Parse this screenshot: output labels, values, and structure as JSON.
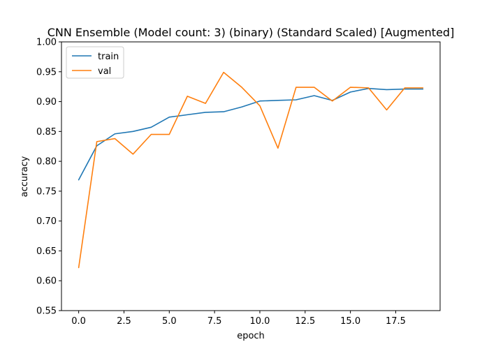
{
  "chart_data": {
    "type": "line",
    "title": "CNN Ensemble (Model count: 3) (binary) (Standard Scaled) [Augmented]",
    "xlabel": "epoch",
    "ylabel": "accuracy",
    "xlim": [
      -0.95,
      19.95
    ],
    "ylim": [
      0.55,
      1.0
    ],
    "xticks": [
      0,
      2.5,
      5,
      7.5,
      10,
      12.5,
      15,
      17.5
    ],
    "xtick_labels": [
      "0.0",
      "2.5",
      "5.0",
      "7.5",
      "10.0",
      "12.5",
      "15.0",
      "17.5"
    ],
    "yticks": [
      0.55,
      0.6,
      0.65,
      0.7,
      0.75,
      0.8,
      0.85,
      0.9,
      0.95,
      1.0
    ],
    "ytick_labels": [
      "0.55",
      "0.60",
      "0.65",
      "0.70",
      "0.75",
      "0.80",
      "0.85",
      "0.90",
      "0.95",
      "1.00"
    ],
    "grid": false,
    "legend_position": "top-left",
    "x": [
      0,
      1,
      2,
      3,
      4,
      5,
      6,
      7,
      8,
      9,
      10,
      11,
      12,
      13,
      14,
      15,
      16,
      17,
      18,
      19
    ],
    "series": [
      {
        "name": "train",
        "color": "#1f77b4",
        "values": [
          0.769,
          0.826,
          0.846,
          0.85,
          0.857,
          0.874,
          0.878,
          0.882,
          0.883,
          0.891,
          0.901,
          0.902,
          0.903,
          0.91,
          0.902,
          0.916,
          0.922,
          0.92,
          0.921,
          0.921
        ]
      },
      {
        "name": "val",
        "color": "#ff7f0e",
        "values": [
          0.622,
          0.833,
          0.838,
          0.812,
          0.845,
          0.845,
          0.909,
          0.897,
          0.949,
          0.924,
          0.893,
          0.822,
          0.924,
          0.924,
          0.901,
          0.924,
          0.923,
          0.886,
          0.923,
          0.923
        ]
      }
    ]
  }
}
